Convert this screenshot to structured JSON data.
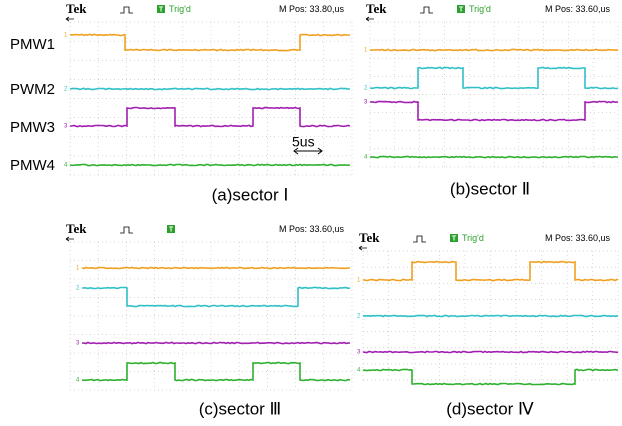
{
  "signal_labels": [
    "PMW1",
    "PWM2",
    "PMW3",
    "PMW4"
  ],
  "time_scale": "5us",
  "panels": [
    {
      "header": {
        "brand": "Tek",
        "status": "Trig'd",
        "position": "M Pos: 33.80,us"
      },
      "channels": [
        "1",
        "2",
        "3",
        "4"
      ],
      "caption": "(a)sector Ⅰ"
    },
    {
      "header": {
        "brand": "Tek",
        "status": "Trig'd",
        "position": "M Pos: 33.60,us"
      },
      "channels": [
        "1",
        "2",
        "3",
        "4"
      ],
      "caption": "(b)sector Ⅱ"
    },
    {
      "header": {
        "brand": "Tek",
        "position": "M Pos: 33.60,us"
      },
      "channels": [
        "1",
        "2",
        "3",
        "4"
      ],
      "caption": "(c)sector Ⅲ"
    },
    {
      "header": {
        "brand": "Tek",
        "status": "Trig'd",
        "position": "M Pos: 33.60,us"
      },
      "channels": [
        "1",
        "2",
        "3",
        "4"
      ],
      "caption": "(d)sector Ⅳ"
    }
  ]
}
